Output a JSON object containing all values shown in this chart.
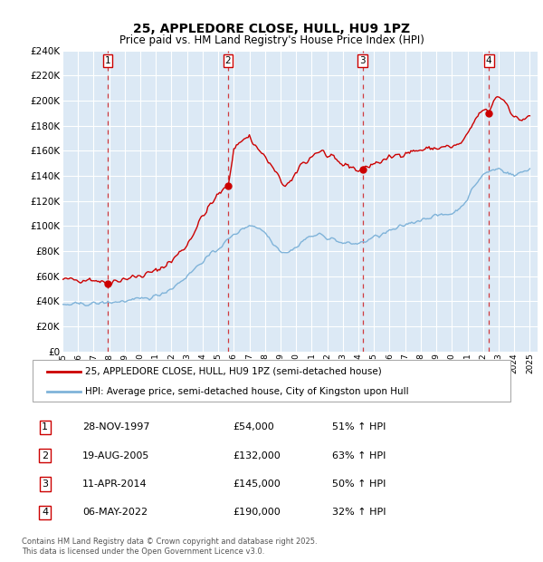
{
  "title": "25, APPLEDORE CLOSE, HULL, HU9 1PZ",
  "subtitle": "Price paid vs. HM Land Registry's House Price Index (HPI)",
  "ylim": [
    0,
    240000
  ],
  "yticks": [
    0,
    20000,
    40000,
    60000,
    80000,
    100000,
    120000,
    140000,
    160000,
    180000,
    200000,
    220000,
    240000
  ],
  "bg_color": "#dce9f5",
  "grid_color": "#ffffff",
  "red_color": "#cc0000",
  "blue_color": "#7fb3d9",
  "transactions": [
    {
      "num": 1,
      "date": "28-NOV-1997",
      "price": 54000,
      "pct": "51%",
      "x_year": 1997.91
    },
    {
      "num": 2,
      "date": "19-AUG-2005",
      "price": 132000,
      "pct": "63%",
      "x_year": 2005.63
    },
    {
      "num": 3,
      "date": "11-APR-2014",
      "price": 145000,
      "pct": "50%",
      "x_year": 2014.28
    },
    {
      "num": 4,
      "date": "06-MAY-2022",
      "price": 190000,
      "pct": "32%",
      "x_year": 2022.37
    }
  ],
  "legend_label_red": "25, APPLEDORE CLOSE, HULL, HU9 1PZ (semi-detached house)",
  "legend_label_blue": "HPI: Average price, semi-detached house, City of Kingston upon Hull",
  "footer": "Contains HM Land Registry data © Crown copyright and database right 2025.\nThis data is licensed under the Open Government Licence v3.0.",
  "x_start": 1995.0,
  "x_end": 2025.5,
  "xtick_years": [
    1995,
    1996,
    1997,
    1998,
    1999,
    2000,
    2001,
    2002,
    2003,
    2004,
    2005,
    2006,
    2007,
    2008,
    2009,
    2010,
    2011,
    2012,
    2013,
    2014,
    2015,
    2016,
    2017,
    2018,
    2019,
    2020,
    2021,
    2022,
    2023,
    2024,
    2025
  ]
}
